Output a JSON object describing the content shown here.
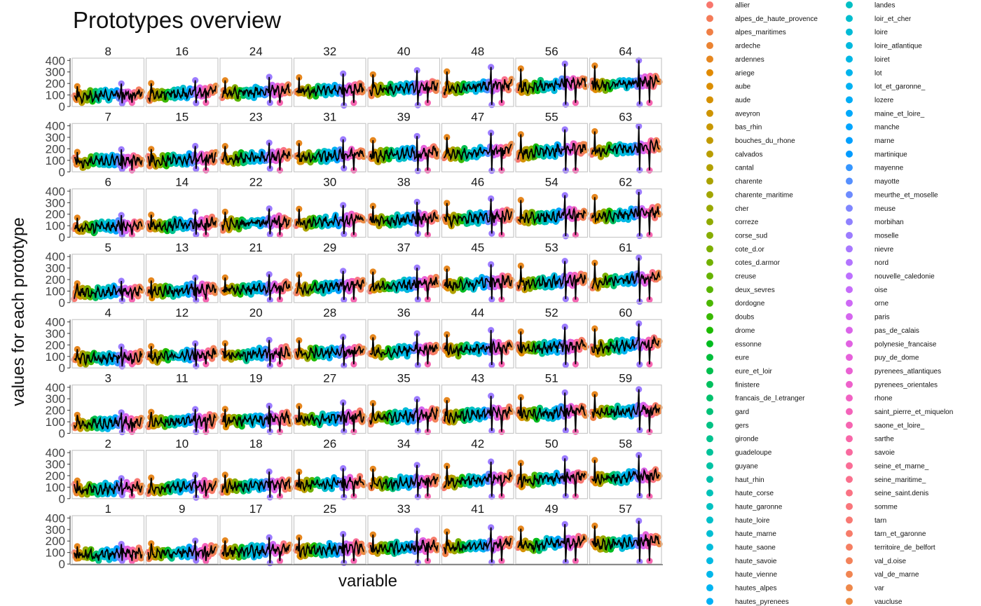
{
  "chart_data": {
    "type": "line",
    "title": "Prototypes overview",
    "xlabel": "variable",
    "ylabel": "values for each prototype",
    "ylim": [
      0,
      420
    ],
    "y_ticks": [
      0,
      100,
      200,
      300,
      400
    ],
    "grid": false,
    "legend_placement": "right",
    "panel_rows": [
      [
        8,
        16,
        24,
        32,
        40,
        48,
        56,
        64
      ],
      [
        7,
        15,
        23,
        31,
        39,
        47,
        55,
        63
      ],
      [
        6,
        14,
        22,
        30,
        38,
        46,
        54,
        62
      ],
      [
        5,
        13,
        21,
        29,
        37,
        45,
        53,
        61
      ],
      [
        4,
        12,
        20,
        28,
        36,
        44,
        52,
        60
      ],
      [
        3,
        11,
        19,
        27,
        35,
        43,
        51,
        59
      ],
      [
        2,
        10,
        18,
        26,
        34,
        42,
        50,
        58
      ],
      [
        1,
        9,
        17,
        25,
        33,
        41,
        49,
        57
      ]
    ],
    "series_color": "#000000",
    "legend": [
      {
        "name": "allier",
        "color": "#F8766D"
      },
      {
        "name": "alpes_de_haute_provence",
        "color": "#F47B58"
      },
      {
        "name": "alpes_maritimes",
        "color": "#F07F45"
      },
      {
        "name": "ardeche",
        "color": "#EB8332"
      },
      {
        "name": "ardennes",
        "color": "#E6871F"
      },
      {
        "name": "ariege",
        "color": "#E18A00"
      },
      {
        "name": "aube",
        "color": "#DB8E00"
      },
      {
        "name": "aude",
        "color": "#D59100"
      },
      {
        "name": "aveyron",
        "color": "#CE9400"
      },
      {
        "name": "bas_rhin",
        "color": "#C89700"
      },
      {
        "name": "bouches_du_rhone",
        "color": "#C19A00"
      },
      {
        "name": "calvados",
        "color": "#B99D00"
      },
      {
        "name": "cantal",
        "color": "#B2A000"
      },
      {
        "name": "charente",
        "color": "#AAA200"
      },
      {
        "name": "charente_maritime",
        "color": "#A2A500"
      },
      {
        "name": "cher",
        "color": "#99A800"
      },
      {
        "name": "correze",
        "color": "#90AA00"
      },
      {
        "name": "corse_sud",
        "color": "#87AD00"
      },
      {
        "name": "cote_d.or",
        "color": "#7DAF00"
      },
      {
        "name": "cotes_d.armor",
        "color": "#72B100"
      },
      {
        "name": "creuse",
        "color": "#66B300"
      },
      {
        "name": "deux_sevres",
        "color": "#59B500"
      },
      {
        "name": "dordogne",
        "color": "#4BB700"
      },
      {
        "name": "doubs",
        "color": "#39B900"
      },
      {
        "name": "drome",
        "color": "#1DBB00"
      },
      {
        "name": "essonne",
        "color": "#00BC1F"
      },
      {
        "name": "eure",
        "color": "#00BE3B"
      },
      {
        "name": "eure_et_loir",
        "color": "#00BF4E"
      },
      {
        "name": "finistere",
        "color": "#00C05E"
      },
      {
        "name": "francais_de_l.etranger",
        "color": "#00C16C"
      },
      {
        "name": "gard",
        "color": "#00C278"
      },
      {
        "name": "gers",
        "color": "#00C284"
      },
      {
        "name": "gironde",
        "color": "#00C38F"
      },
      {
        "name": "guadeloupe",
        "color": "#00C39A"
      },
      {
        "name": "guyane",
        "color": "#00C3A4"
      },
      {
        "name": "haut_rhin",
        "color": "#00C2AE"
      },
      {
        "name": "haute_corse",
        "color": "#00C2B8"
      },
      {
        "name": "haute_garonne",
        "color": "#00C1C1"
      },
      {
        "name": "haute_loire",
        "color": "#00C0CA"
      },
      {
        "name": "haute_marne",
        "color": "#00BED3"
      },
      {
        "name": "haute_saone",
        "color": "#00BCDB"
      },
      {
        "name": "haute_savoie",
        "color": "#00BAE3"
      },
      {
        "name": "haute_vienne",
        "color": "#00B7EA"
      },
      {
        "name": "hautes_alpes",
        "color": "#00B4F1"
      },
      {
        "name": "hautes_pyrenees",
        "color": "#00B0F6"
      },
      {
        "name": "landes",
        "color": "#00BFC4"
      },
      {
        "name": "loir_et_cher",
        "color": "#00BDCE"
      },
      {
        "name": "loire",
        "color": "#00BBD6"
      },
      {
        "name": "loire_atlantique",
        "color": "#00B9DE"
      },
      {
        "name": "loiret",
        "color": "#00B7E5"
      },
      {
        "name": "lot",
        "color": "#00B4EC"
      },
      {
        "name": "lot_et_garonne_",
        "color": "#00B1F2"
      },
      {
        "name": "lozere",
        "color": "#00ADF7"
      },
      {
        "name": "maine_et_loire_",
        "color": "#00A9FB"
      },
      {
        "name": "manche",
        "color": "#00A5FF"
      },
      {
        "name": "marne",
        "color": "#00A0FF"
      },
      {
        "name": "martinique",
        "color": "#009BFF"
      },
      {
        "name": "mayenne",
        "color": "#3596FF"
      },
      {
        "name": "mayotte",
        "color": "#5690FF"
      },
      {
        "name": "meurthe_et_moselle",
        "color": "#6D8BFF"
      },
      {
        "name": "meuse",
        "color": "#7F86FF"
      },
      {
        "name": "morbihan",
        "color": "#8F81FF"
      },
      {
        "name": "moselle",
        "color": "#9C7CFF"
      },
      {
        "name": "nievre",
        "color": "#A878FF"
      },
      {
        "name": "nord",
        "color": "#B374FF"
      },
      {
        "name": "nouvelle_caledonie",
        "color": "#BD70FF"
      },
      {
        "name": "oise",
        "color": "#C66CFA"
      },
      {
        "name": "orne",
        "color": "#CE69F5"
      },
      {
        "name": "paris",
        "color": "#D566EF"
      },
      {
        "name": "pas_de_calais",
        "color": "#DB64E9"
      },
      {
        "name": "polynesie_francaise",
        "color": "#E162E2"
      },
      {
        "name": "puy_de_dome",
        "color": "#E661DB"
      },
      {
        "name": "pyrenees_atlantiques",
        "color": "#EA61D3"
      },
      {
        "name": "pyrenees_orientales",
        "color": "#EE61CB"
      },
      {
        "name": "rhone",
        "color": "#F162C3"
      },
      {
        "name": "saint_pierre_et_miquelon",
        "color": "#F463BA"
      },
      {
        "name": "saone_et_loire_",
        "color": "#F665B1"
      },
      {
        "name": "sarthe",
        "color": "#F867A8"
      },
      {
        "name": "savoie",
        "color": "#F96A9F"
      },
      {
        "name": "seine_et_marne_",
        "color": "#FA6D96"
      },
      {
        "name": "seine_maritime_",
        "color": "#FA708D"
      },
      {
        "name": "seine_saint.denis",
        "color": "#FA7384"
      },
      {
        "name": "somme",
        "color": "#F9767B"
      },
      {
        "name": "tarn",
        "color": "#F87973"
      },
      {
        "name": "tarn_et_garonne",
        "color": "#F77C6A"
      },
      {
        "name": "territoire_de_belfort",
        "color": "#F57F62"
      },
      {
        "name": "val_d.oise",
        "color": "#F3825A"
      },
      {
        "name": "val_de_marne",
        "color": "#F18552"
      },
      {
        "name": "var",
        "color": "#EE884A"
      },
      {
        "name": "vaucluse",
        "color": "#EC8B42"
      }
    ]
  }
}
